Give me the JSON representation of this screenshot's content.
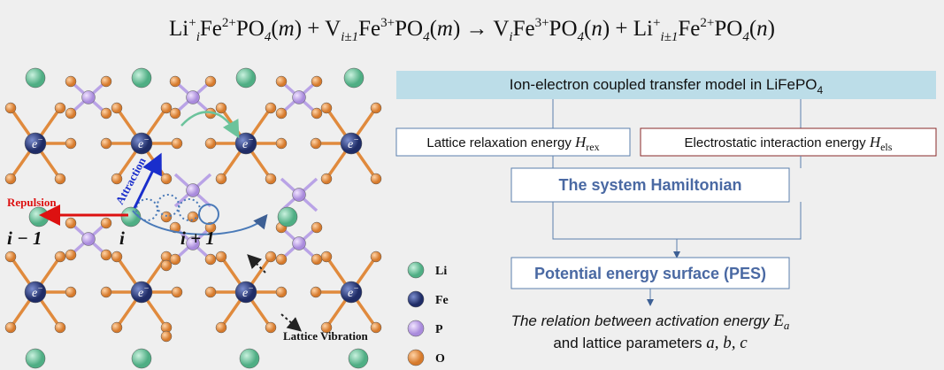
{
  "equation": [
    {
      "text": "Li",
      "pos": "base"
    },
    {
      "text": "+",
      "pos": "sup"
    },
    {
      "text": "i",
      "pos": "sub"
    },
    {
      "text": "Fe",
      "pos": "base"
    },
    {
      "text": "2+",
      "pos": "sup"
    },
    {
      "text": "PO",
      "pos": "base"
    },
    {
      "text": "4",
      "pos": "sub"
    },
    {
      "text": "(",
      "pos": "base"
    },
    {
      "text": "m",
      "pos": "ital"
    },
    {
      "text": ") + V",
      "pos": "base"
    },
    {
      "text": "i±1",
      "pos": "sub"
    },
    {
      "text": "Fe",
      "pos": "base"
    },
    {
      "text": "3+",
      "pos": "sup"
    },
    {
      "text": "PO",
      "pos": "base"
    },
    {
      "text": "4",
      "pos": "sub"
    },
    {
      "text": "(",
      "pos": "base"
    },
    {
      "text": "m",
      "pos": "ital"
    },
    {
      "text": ") → V",
      "pos": "base"
    },
    {
      "text": "i",
      "pos": "sub"
    },
    {
      "text": "Fe",
      "pos": "base"
    },
    {
      "text": "3+",
      "pos": "sup"
    },
    {
      "text": "PO",
      "pos": "base"
    },
    {
      "text": "4",
      "pos": "sub"
    },
    {
      "text": "(",
      "pos": "base"
    },
    {
      "text": "n",
      "pos": "ital"
    },
    {
      "text": ") + Li",
      "pos": "base"
    },
    {
      "text": "+",
      "pos": "sup"
    },
    {
      "text": "i±1",
      "pos": "sub"
    },
    {
      "text": "Fe",
      "pos": "base"
    },
    {
      "text": "2+",
      "pos": "sup"
    },
    {
      "text": "PO",
      "pos": "base"
    },
    {
      "text": "4",
      "pos": "sub"
    },
    {
      "text": "(",
      "pos": "base"
    },
    {
      "text": "n",
      "pos": "ital"
    },
    {
      "text": ")",
      "pos": "base"
    }
  ],
  "structure": {
    "electron": "e",
    "electron_charge": "−",
    "repulsion": "Repulsion",
    "attraction": "Attraction",
    "sites": [
      "i − 1",
      "i",
      "i + 1"
    ],
    "vibration": "Lattice Vibration"
  },
  "legend": [
    "Li",
    "Fe",
    "P",
    "O"
  ],
  "flowchart": {
    "header": {
      "text": "Ion-electron coupled transfer model in LiFePO",
      "sub": "4"
    },
    "lattice": {
      "text": "Lattice relaxation energy ",
      "symbol": "H",
      "sub": "rex"
    },
    "electrostatic": {
      "text": "Electrostatic interaction energy ",
      "symbol": "H",
      "sub": "els"
    },
    "hamiltonian": "The system Hamiltonian",
    "pes": "Potential energy surface (PES)",
    "result": {
      "line1": "The relation between activation energy ",
      "symbol": "E",
      "sub": "a",
      "line2": "and lattice parameters ",
      "params": "a, b, c"
    }
  }
}
